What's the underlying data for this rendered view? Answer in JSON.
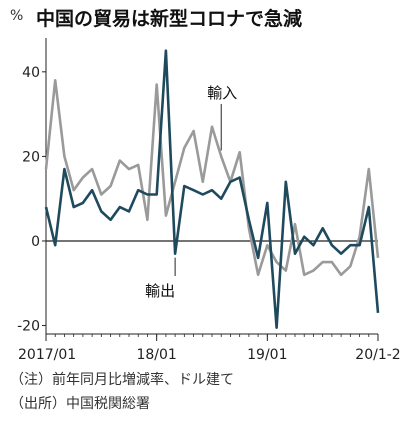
{
  "chart_data": {
    "type": "line",
    "title": "中国の貿易は新型コロナで急減",
    "unit": "%",
    "ylim": [
      -22,
      48
    ],
    "yticks": [
      40,
      20,
      0,
      -20
    ],
    "ytick_labels": [
      "40",
      "20",
      "0",
      "-20"
    ],
    "xtick_labels": [
      {
        "index": 0,
        "label": "2017/01"
      },
      {
        "index": 12,
        "label": "18/01"
      },
      {
        "index": 24,
        "label": "19/01"
      },
      {
        "index": 36,
        "label": "20/1-2"
      }
    ],
    "grid": false,
    "zero_line": true,
    "x": [
      "2017/01",
      "2017/02",
      "2017/03",
      "2017/04",
      "2017/05",
      "2017/06",
      "2017/07",
      "2017/08",
      "2017/09",
      "2017/10",
      "2017/11",
      "2017/12",
      "2018/01",
      "2018/02",
      "2018/03",
      "2018/04",
      "2018/05",
      "2018/06",
      "2018/07",
      "2018/08",
      "2018/09",
      "2018/10",
      "2018/11",
      "2018/12",
      "2019/01",
      "2019/02",
      "2019/03",
      "2019/04",
      "2019/05",
      "2019/06",
      "2019/07",
      "2019/08",
      "2019/09",
      "2019/10",
      "2019/11",
      "2019/12",
      "2020/1-2"
    ],
    "series": [
      {
        "name": "輸出",
        "color": "#1f4a5e",
        "values": [
          8,
          -1,
          17,
          8,
          9,
          12,
          7,
          5,
          8,
          7,
          12,
          11,
          11,
          45,
          -3,
          13,
          12,
          11,
          12,
          10,
          14,
          15,
          5,
          -4,
          9,
          -20.5,
          14,
          -3,
          1,
          -1,
          3,
          -1,
          -3,
          -1,
          -1,
          8,
          -17
        ]
      },
      {
        "name": "輸入",
        "color": "#9a9a9a",
        "values": [
          17,
          38,
          20,
          12,
          15,
          17,
          11,
          13,
          19,
          17,
          18,
          5,
          37,
          6,
          14,
          22,
          26,
          14,
          27,
          20,
          14,
          21,
          3,
          -8,
          -1,
          -5,
          -7,
          4,
          -8,
          -7,
          -5,
          -5,
          -8,
          -6,
          1,
          17,
          -4
        ]
      }
    ],
    "annotations": [
      {
        "text": "輸入",
        "series": 1,
        "index": 19
      },
      {
        "text": "輸出",
        "series": 0,
        "index": 14
      }
    ],
    "notes": [
      "（注）前年同月比増減率、ドル建て",
      "（出所）中国税関総署"
    ]
  }
}
